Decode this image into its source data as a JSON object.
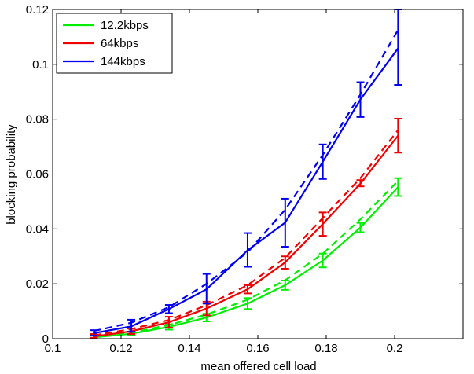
{
  "chart_data": {
    "type": "line",
    "title": "",
    "xlabel": "mean offered cell load",
    "ylabel": "blocking probability",
    "xlim": [
      0.1,
      0.22
    ],
    "ylim": [
      0,
      0.12
    ],
    "xticks": [
      0.1,
      0.12,
      0.14,
      0.16,
      0.18,
      0.2
    ],
    "xtick_labels": [
      "0.1",
      "0.12",
      "0.14",
      "0.16",
      "0.18",
      "0.2"
    ],
    "yticks": [
      0,
      0.02,
      0.04,
      0.06,
      0.08,
      0.1,
      0.12
    ],
    "ytick_labels": [
      "0",
      "0.02",
      "0.04",
      "0.06",
      "0.08",
      "0.1",
      "0.12"
    ],
    "grid": false,
    "legend_position": "top-left",
    "x": [
      0.112,
      0.123,
      0.134,
      0.145,
      0.157,
      0.168,
      0.179,
      0.19,
      0.201
    ],
    "series": [
      {
        "name": "12.2kbps",
        "color": "#00ee00",
        "solid": [
          0.0005,
          0.0018,
          0.0043,
          0.0077,
          0.0128,
          0.0195,
          0.0285,
          0.0405,
          0.0552
        ],
        "dashed": [
          0.0007,
          0.0022,
          0.005,
          0.0088,
          0.0142,
          0.0213,
          0.031,
          0.0435,
          0.0575
        ],
        "err_low": [
          0.0002,
          0.0012,
          0.0033,
          0.0063,
          0.0108,
          0.0178,
          0.026,
          0.0388,
          0.052
        ],
        "err_high": [
          0.0012,
          0.0026,
          0.0053,
          0.0091,
          0.0148,
          0.0212,
          0.031,
          0.0422,
          0.0585
        ]
      },
      {
        "name": "64kbps",
        "color": "#ee0000",
        "solid": [
          0.0008,
          0.0027,
          0.006,
          0.011,
          0.018,
          0.0278,
          0.0418,
          0.0565,
          0.074
        ],
        "dashed": [
          0.0012,
          0.0035,
          0.0068,
          0.0122,
          0.0195,
          0.0295,
          0.044,
          0.0585,
          0.076
        ],
        "err_low": [
          0.0003,
          0.0017,
          0.004,
          0.0085,
          0.0165,
          0.0255,
          0.0375,
          0.0555,
          0.0678
        ],
        "err_high": [
          0.0017,
          0.0037,
          0.008,
          0.0135,
          0.0195,
          0.03,
          0.046,
          0.0578,
          0.0802
        ]
      },
      {
        "name": "144kbps",
        "color": "#0000ee",
        "solid": [
          0.002,
          0.0045,
          0.0108,
          0.018,
          0.0322,
          0.0423,
          0.0645,
          0.0872,
          0.1058
        ],
        "dashed": [
          0.0028,
          0.0058,
          0.0115,
          0.02,
          0.0315,
          0.047,
          0.067,
          0.089,
          0.1125
        ],
        "err_low": [
          0.0011,
          0.0025,
          0.0093,
          0.0128,
          0.0262,
          0.0335,
          0.0582,
          0.0808,
          0.0925
        ],
        "err_high": [
          0.0031,
          0.0069,
          0.0123,
          0.0236,
          0.0385,
          0.051,
          0.0708,
          0.0935,
          0.12
        ]
      }
    ]
  }
}
